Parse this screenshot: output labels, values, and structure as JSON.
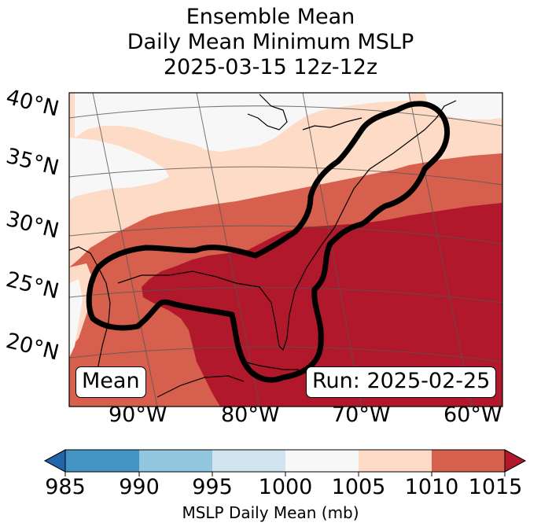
{
  "title": {
    "line1": "Ensemble Mean",
    "line2": "Daily Mean Minimum MSLP",
    "line3": "2025-03-15 12z-12z"
  },
  "map": {
    "latitude_labels": [
      "40°N",
      "35°N",
      "30°N",
      "25°N",
      "20°N"
    ],
    "longitude_labels": [
      "90°W",
      "80°W",
      "70°W",
      "60°W"
    ],
    "mean_label": "Mean",
    "run_label": "Run: 2025-02-25",
    "fill_colors": {
      "1000_1005": "#f7f7f7",
      "1005_1010": "#fddbc7",
      "1010_1015": "#d6604d",
      "above_1015": "#b2182b"
    },
    "contour_color": "#000000"
  },
  "colorbar": {
    "title": "MSLP Daily Mean (mb)",
    "ticks": [
      "985",
      "990",
      "995",
      "1000",
      "1005",
      "1010",
      "1015"
    ],
    "colors": [
      "#2166ac",
      "#4393c3",
      "#92c5de",
      "#d1e5f0",
      "#f7f7f7",
      "#fddbc7",
      "#d6604d",
      "#b2182b"
    ],
    "extend": "both"
  }
}
